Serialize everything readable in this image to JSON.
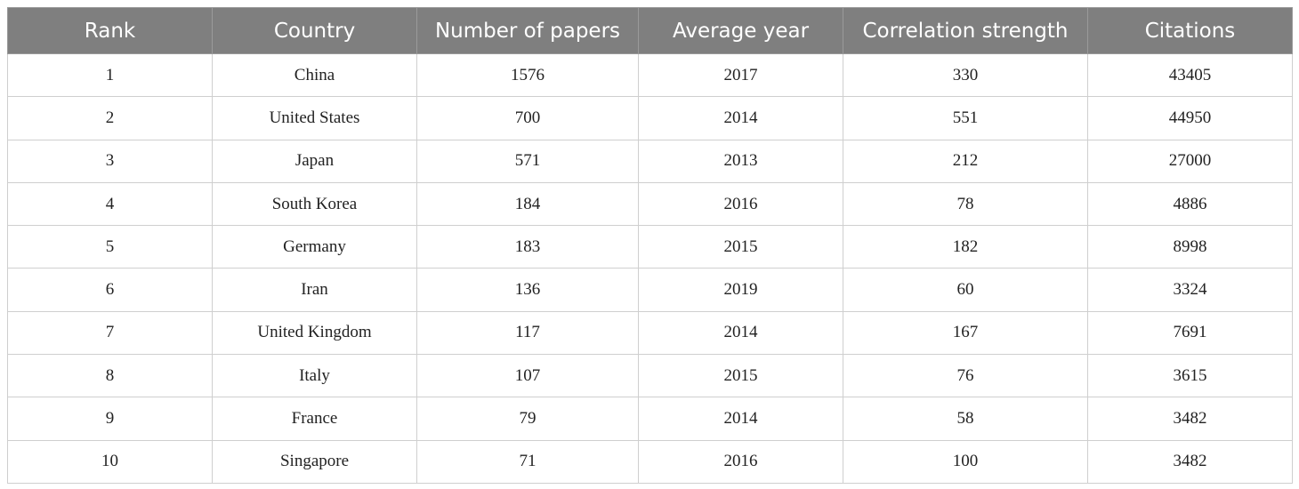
{
  "table": {
    "header": [
      "Rank",
      "Country",
      "Number of papers",
      "Average year",
      "Correlation strength",
      "Citations"
    ],
    "rows": [
      [
        1,
        "China",
        1576,
        2017,
        330,
        43405
      ],
      [
        2,
        "United States",
        700,
        2014,
        551,
        44950
      ],
      [
        3,
        "Japan",
        571,
        2013,
        212,
        27000
      ],
      [
        4,
        "South Korea",
        184,
        2016,
        78,
        4886
      ],
      [
        5,
        "Germany",
        183,
        2015,
        182,
        8998
      ],
      [
        6,
        "Iran",
        136,
        2019,
        60,
        3324
      ],
      [
        7,
        "United Kingdom",
        117,
        2014,
        167,
        7691
      ],
      [
        8,
        "Italy",
        107,
        2015,
        76,
        3615
      ],
      [
        9,
        "France",
        79,
        2014,
        58,
        3482
      ],
      [
        10,
        "Singapore",
        71,
        2016,
        100,
        3482
      ]
    ]
  }
}
